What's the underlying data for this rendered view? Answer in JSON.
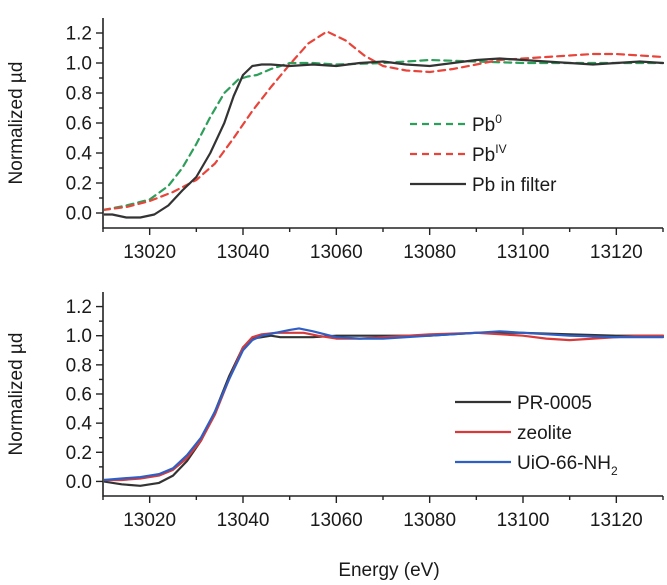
{
  "xlabel": "Energy (eV)",
  "chart_data": [
    {
      "type": "line",
      "title": "",
      "xlabel": "",
      "ylabel": "Normalized µd",
      "xlim": [
        13010,
        13130
      ],
      "ylim": [
        -0.1,
        1.3
      ],
      "xticks": [
        13020,
        13040,
        13060,
        13080,
        13100,
        13120
      ],
      "yticks": [
        0.0,
        0.2,
        0.4,
        0.6,
        0.8,
        1.0,
        1.2
      ],
      "xtick_labels": [
        "13020",
        "13040",
        "13060",
        "13080",
        "13100",
        "13120"
      ],
      "ytick_labels": [
        "0.0",
        "0.2",
        "0.4",
        "0.6",
        "0.8",
        "1.0",
        "1.2"
      ],
      "legend_position": "center-right",
      "series": [
        {
          "name_base": "Pb",
          "name_sup": "0",
          "color": "#2e9e5b",
          "dash": "dashed",
          "x": [
            13010,
            13015,
            13020,
            13024,
            13027,
            13030,
            13033,
            13036,
            13039,
            13041,
            13043,
            13046,
            13050,
            13055,
            13060,
            13070,
            13080,
            13090,
            13100,
            13110,
            13120,
            13130
          ],
          "y": [
            0.02,
            0.05,
            0.09,
            0.18,
            0.3,
            0.46,
            0.64,
            0.8,
            0.89,
            0.91,
            0.92,
            0.96,
            1.0,
            1.0,
            0.99,
            1.0,
            1.02,
            1.01,
            1.0,
            1.0,
            1.0,
            1.0
          ]
        },
        {
          "name_base": "Pb",
          "name_sup": "IV",
          "color": "#e8443a",
          "dash": "dashed",
          "x": [
            13010,
            13015,
            13020,
            13025,
            13030,
            13034,
            13038,
            13042,
            13046,
            13050,
            13054,
            13058,
            13062,
            13066,
            13070,
            13075,
            13080,
            13085,
            13090,
            13095,
            13100,
            13105,
            13110,
            13115,
            13120,
            13125,
            13130
          ],
          "y": [
            0.02,
            0.04,
            0.08,
            0.14,
            0.22,
            0.33,
            0.5,
            0.68,
            0.84,
            0.99,
            1.13,
            1.21,
            1.15,
            1.05,
            0.98,
            0.95,
            0.94,
            0.96,
            0.99,
            1.02,
            1.03,
            1.04,
            1.05,
            1.06,
            1.06,
            1.05,
            1.04
          ]
        },
        {
          "name": "Pb in filter",
          "color": "#333333",
          "dash": "solid",
          "x": [
            13010,
            13012,
            13015,
            13018,
            13021,
            13024,
            13027,
            13030,
            13033,
            13036,
            13038,
            13040,
            13042,
            13044,
            13046,
            13050,
            13055,
            13060,
            13065,
            13070,
            13075,
            13080,
            13085,
            13090,
            13095,
            13100,
            13105,
            13110,
            13115,
            13120,
            13125,
            13130
          ],
          "y": [
            -0.01,
            -0.01,
            -0.03,
            -0.03,
            -0.01,
            0.05,
            0.15,
            0.24,
            0.4,
            0.6,
            0.78,
            0.92,
            0.98,
            0.99,
            0.99,
            0.98,
            0.99,
            0.98,
            1.0,
            1.01,
            0.99,
            0.98,
            1.0,
            1.02,
            1.03,
            1.02,
            1.01,
            1.0,
            0.99,
            1.0,
            1.01,
            1.0
          ]
        }
      ]
    },
    {
      "type": "line",
      "title": "",
      "xlabel": "Energy (eV)",
      "ylabel": "Normalized µd",
      "xlim": [
        13010,
        13130
      ],
      "ylim": [
        -0.1,
        1.3
      ],
      "xticks": [
        13020,
        13040,
        13060,
        13080,
        13100,
        13120
      ],
      "yticks": [
        0.0,
        0.2,
        0.4,
        0.6,
        0.8,
        1.0,
        1.2
      ],
      "xtick_labels": [
        "13020",
        "13040",
        "13060",
        "13080",
        "13100",
        "13120"
      ],
      "ytick_labels": [
        "0.0",
        "0.2",
        "0.4",
        "0.6",
        "0.8",
        "1.0",
        "1.2"
      ],
      "legend_position": "bottom-right",
      "series": [
        {
          "name": "PR-0005",
          "color": "#333333",
          "dash": "solid",
          "x": [
            13010,
            13014,
            13018,
            13022,
            13025,
            13028,
            13031,
            13034,
            13037,
            13040,
            13042,
            13044,
            13046,
            13048,
            13050,
            13055,
            13060,
            13065,
            13070,
            13080,
            13090,
            13100,
            13110,
            13120,
            13130
          ],
          "y": [
            0.0,
            -0.02,
            -0.03,
            -0.01,
            0.04,
            0.14,
            0.28,
            0.48,
            0.72,
            0.92,
            0.98,
            0.99,
            1.0,
            0.99,
            0.99,
            0.99,
            1.0,
            1.0,
            1.0,
            1.0,
            1.02,
            1.02,
            1.01,
            1.0,
            1.0
          ]
        },
        {
          "name": "zeolite",
          "color": "#d63a3a",
          "dash": "solid",
          "x": [
            13010,
            13014,
            13018,
            13022,
            13025,
            13028,
            13031,
            13034,
            13037,
            13040,
            13042,
            13044,
            13047,
            13050,
            13053,
            13056,
            13060,
            13065,
            13070,
            13080,
            13090,
            13100,
            13105,
            13110,
            13115,
            13120,
            13125,
            13130
          ],
          "y": [
            0.01,
            0.01,
            0.02,
            0.04,
            0.08,
            0.16,
            0.28,
            0.46,
            0.7,
            0.92,
            0.99,
            1.01,
            1.02,
            1.02,
            1.02,
            1.0,
            0.98,
            0.98,
            0.99,
            1.01,
            1.02,
            1.0,
            0.98,
            0.97,
            0.98,
            0.99,
            1.0,
            1.0
          ]
        },
        {
          "name_base": "UiO-66-NH",
          "name_sub": "2",
          "color": "#2f5fc4",
          "dash": "solid",
          "x": [
            13010,
            13014,
            13018,
            13022,
            13025,
            13028,
            13031,
            13034,
            13037,
            13040,
            13042,
            13044,
            13047,
            13050,
            13052,
            13055,
            13060,
            13065,
            13070,
            13080,
            13090,
            13095,
            13100,
            13110,
            13120,
            13130
          ],
          "y": [
            0.01,
            0.02,
            0.03,
            0.05,
            0.09,
            0.18,
            0.3,
            0.48,
            0.7,
            0.9,
            0.97,
            1.0,
            1.02,
            1.04,
            1.05,
            1.03,
            0.99,
            0.98,
            0.98,
            1.0,
            1.02,
            1.03,
            1.02,
            1.0,
            0.99,
            0.99
          ]
        }
      ]
    }
  ]
}
